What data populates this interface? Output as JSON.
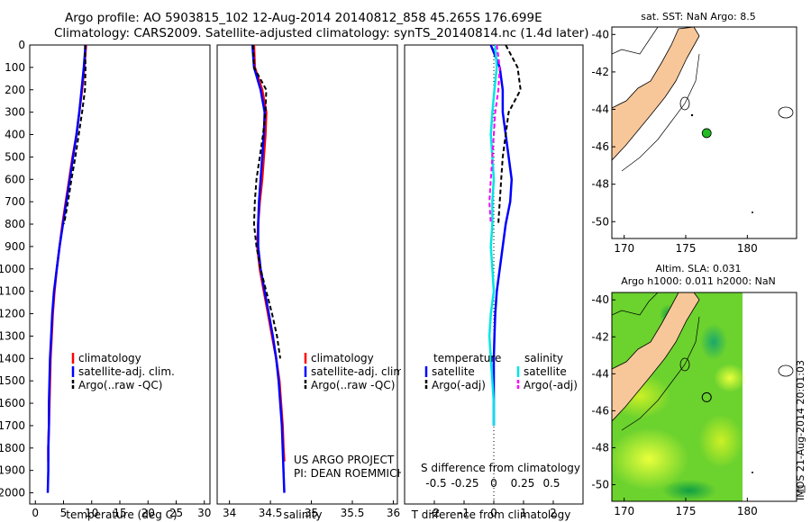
{
  "header": {
    "line1": "Argo profile: AO 5903815_102 12-Aug-2014 20140812_858 45.265S 176.699E",
    "line2": "Climatology: CARS2009. Satellite-adjusted climatology: synTS_20140814.nc (1.4d later)"
  },
  "footer": {
    "project": "US ARGO PROJECT",
    "pi": "PI: DEAN ROEMMICH",
    "credit": "IMOS 21-Aug-2014 20:01:03"
  },
  "colors": {
    "climatology": "#ff0000",
    "satellite": "#0000ff",
    "argo": "#000000",
    "sal_satellite": "#00e5e5",
    "sal_argo": "#ff00ff",
    "land": "#f7c79a",
    "sst_marker": "#22bb22"
  },
  "chart_data": [
    {
      "type": "line",
      "xlabel": "temperature (deg C)",
      "xticks": [
        0,
        5,
        10,
        15,
        20,
        25,
        30
      ],
      "xlim": [
        -1,
        31
      ],
      "yticks": [
        0,
        100,
        200,
        300,
        400,
        500,
        600,
        700,
        800,
        900,
        1000,
        1100,
        1200,
        1300,
        1400,
        1500,
        1600,
        1700,
        1800,
        1900,
        2000
      ],
      "ylim": [
        2050,
        0
      ],
      "legend": [
        "climatology",
        "satellite-adj. clim.",
        "Argo(..raw -QC)"
      ],
      "series": [
        {
          "name": "climatology",
          "x": [
            9.0,
            8.7,
            8.3,
            7.8,
            7.3,
            6.6,
            6.0,
            5.4,
            4.8,
            4.3,
            3.8,
            3.4,
            3.1,
            2.9,
            2.7,
            2.6,
            2.5,
            2.4,
            2.3,
            2.3
          ],
          "y": [
            0,
            100,
            200,
            300,
            400,
            500,
            600,
            700,
            800,
            900,
            1000,
            1100,
            1200,
            1300,
            1400,
            1500,
            1600,
            1700,
            1800,
            1860
          ]
        },
        {
          "name": "satellite-adj. clim.",
          "x": [
            8.9,
            8.6,
            8.2,
            7.8,
            7.3,
            6.7,
            6.1,
            5.5,
            4.9,
            4.3,
            3.8,
            3.3,
            3.0,
            2.8,
            2.6,
            2.5,
            2.4,
            2.4,
            2.3,
            2.3,
            2.2
          ],
          "y": [
            0,
            100,
            200,
            300,
            400,
            500,
            600,
            700,
            800,
            900,
            1000,
            1100,
            1200,
            1300,
            1400,
            1500,
            1600,
            1700,
            1800,
            1900,
            2000
          ]
        },
        {
          "name": "Argo(..raw -QC)",
          "x": [
            8.8,
            8.9,
            8.8,
            8.3,
            7.7,
            7.1,
            6.4,
            5.8,
            5.1
          ],
          "y": [
            0,
            100,
            200,
            300,
            400,
            500,
            600,
            700,
            800
          ]
        }
      ]
    },
    {
      "type": "line",
      "xlabel": "salinity",
      "xticks": [
        34,
        34.5,
        35,
        35.5,
        36
      ],
      "xlim": [
        33.85,
        36.05
      ],
      "ylim": [
        2050,
        0
      ],
      "legend": [
        "climatology",
        "satellite-adj. clim.",
        "Argo(..raw -QC)"
      ],
      "series": [
        {
          "name": "climatology",
          "x": [
            34.3,
            34.31,
            34.4,
            34.45,
            34.44,
            34.42,
            34.4,
            34.37,
            34.35,
            34.34,
            34.37,
            34.42,
            34.47,
            34.52,
            34.57,
            34.61,
            34.63,
            34.65,
            34.66,
            34.67
          ],
          "y": [
            0,
            100,
            200,
            300,
            400,
            500,
            600,
            700,
            800,
            900,
            1000,
            1100,
            1200,
            1300,
            1400,
            1500,
            1600,
            1700,
            1800,
            1860
          ]
        },
        {
          "name": "satellite-adj. clim.",
          "x": [
            34.28,
            34.3,
            34.38,
            34.43,
            34.42,
            34.4,
            34.38,
            34.36,
            34.35,
            34.35,
            34.38,
            34.43,
            34.48,
            34.53,
            34.57,
            34.6,
            34.62,
            34.64,
            34.65,
            34.66,
            34.67
          ],
          "y": [
            0,
            100,
            200,
            300,
            400,
            500,
            600,
            700,
            800,
            900,
            1000,
            1100,
            1200,
            1300,
            1400,
            1500,
            1600,
            1700,
            1800,
            1900,
            2000
          ]
        },
        {
          "name": "Argo(..raw -QC)",
          "x": [
            34.29,
            34.3,
            34.45,
            34.44,
            34.41,
            34.37,
            34.33,
            34.31,
            34.3,
            34.33,
            34.38,
            34.45,
            34.52,
            34.58,
            34.62
          ],
          "y": [
            0,
            100,
            200,
            300,
            400,
            500,
            600,
            700,
            800,
            900,
            1000,
            1100,
            1200,
            1300,
            1400
          ]
        }
      ]
    },
    {
      "type": "line",
      "xlabel_top": "S difference from climatology",
      "xticks_top": [
        -0.5,
        -0.25,
        0,
        0.25,
        0.5
      ],
      "xlabel": "T difference from climatology",
      "xticks": [
        -2,
        -1,
        0,
        1,
        2
      ],
      "xlim": [
        -3,
        3
      ],
      "ylim": [
        2050,
        0
      ],
      "legend_groups": [
        "temperature",
        "salinity"
      ],
      "legend": [
        "satellite",
        "Argo(-adj)",
        "satellite",
        "Argo(-adj)"
      ],
      "series": [
        {
          "name": "temperature satellite",
          "x": [
            -0.1,
            0.2,
            0.3,
            0.3,
            0.4,
            0.5,
            0.6,
            0.55,
            0.4,
            0.3,
            0.2,
            0.1,
            0.05,
            0.02,
            0.0,
            0.0,
            0.0,
            0.0
          ],
          "y": [
            0,
            100,
            200,
            300,
            400,
            500,
            600,
            700,
            800,
            900,
            1000,
            1100,
            1200,
            1300,
            1400,
            1500,
            1600,
            1700
          ]
        },
        {
          "name": "temperature Argo(-adj)",
          "x": [
            0.4,
            0.8,
            0.9,
            0.5,
            0.4,
            0.3,
            0.25,
            0.2,
            0.15
          ],
          "y": [
            0,
            100,
            200,
            300,
            400,
            500,
            600,
            700,
            800
          ]
        },
        {
          "name": "salinity satellite",
          "x": [
            0.05,
            0.1,
            0.02,
            -0.05,
            -0.1,
            -0.05,
            0.0,
            -0.05,
            -0.05,
            -0.1,
            -0.05,
            0.0,
            -0.1,
            -0.15,
            -0.1,
            -0.05,
            0.0,
            0.0
          ],
          "y": [
            0,
            100,
            200,
            300,
            400,
            500,
            600,
            700,
            800,
            900,
            1000,
            1100,
            1200,
            1300,
            1400,
            1500,
            1600,
            1700
          ]
        },
        {
          "name": "salinity Argo(-adj)",
          "x": [
            0.1,
            0.2,
            0.15,
            0.05,
            0.0,
            -0.05,
            -0.1,
            -0.15,
            -0.1
          ],
          "y": [
            0,
            100,
            200,
            300,
            400,
            500,
            600,
            700,
            800
          ]
        }
      ]
    },
    {
      "type": "scatter",
      "title": "sat. SST: NaN Argo: 8.5",
      "xticks": [
        170,
        175,
        180
      ],
      "yticks": [
        -40,
        -42,
        -44,
        -46,
        -48,
        -50
      ],
      "xlim": [
        169,
        184
      ],
      "ylim": [
        -50.9,
        -39.6
      ],
      "points": [
        {
          "lon": 176.7,
          "lat": -45.27
        }
      ]
    },
    {
      "type": "heatmap",
      "title_line1": "Altim. SLA: 0.031",
      "title_line2": "Argo h1000: 0.011 h2000: NaN",
      "xticks": [
        170,
        175,
        180
      ],
      "yticks": [
        -40,
        -42,
        -44,
        -46,
        -48,
        -50
      ],
      "xlim": [
        169,
        184
      ],
      "ylim": [
        -50.9,
        -39.6
      ],
      "points": [
        {
          "lon": 176.7,
          "lat": -45.27
        }
      ]
    }
  ]
}
